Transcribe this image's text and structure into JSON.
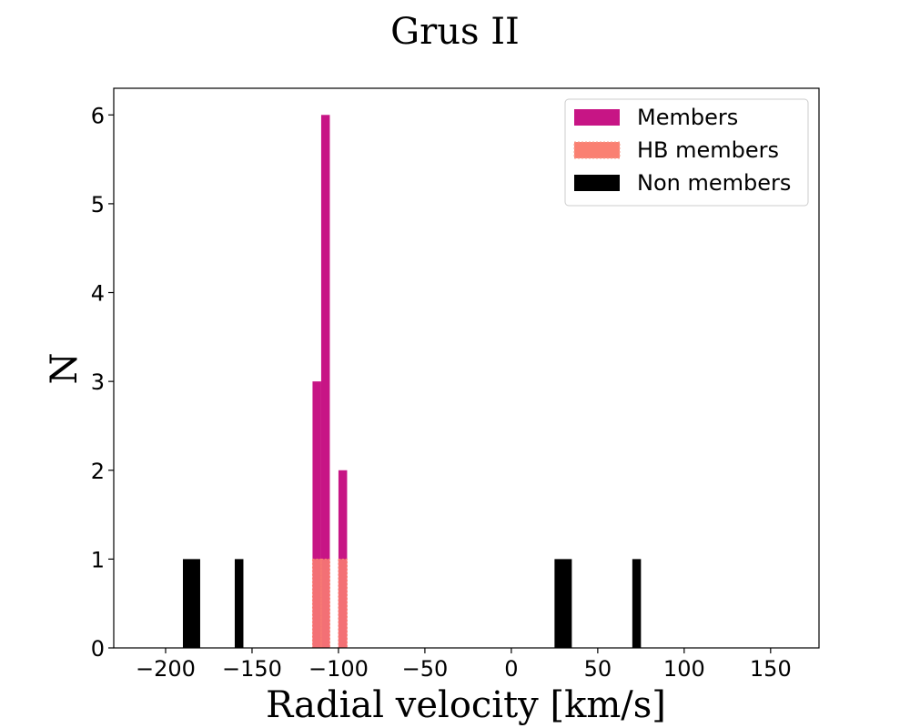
{
  "chart_data": {
    "type": "bar",
    "title": "Grus II",
    "xlabel": "Radial velocity [km/s]",
    "ylabel": "N",
    "xlim": [
      -230,
      178
    ],
    "ylim": [
      0,
      6.3
    ],
    "x_ticks": [
      -200,
      -150,
      -100,
      -50,
      0,
      50,
      100,
      150
    ],
    "y_ticks": [
      0,
      1,
      2,
      3,
      4,
      5,
      6
    ],
    "bin_width": 5,
    "grid": false,
    "legend_position": "top-right",
    "series": [
      {
        "name": "Members",
        "color": "#c71585",
        "bins": [
          {
            "x0": -115,
            "x1": -110,
            "count": 3
          },
          {
            "x0": -110,
            "x1": -105,
            "count": 6
          },
          {
            "x0": -100,
            "x1": -95,
            "count": 2
          }
        ]
      },
      {
        "name": "HB members",
        "color": "#fa8072",
        "bins": [
          {
            "x0": -115,
            "x1": -110,
            "count": 1
          },
          {
            "x0": -110,
            "x1": -105,
            "count": 1
          },
          {
            "x0": -100,
            "x1": -95,
            "count": 1
          }
        ]
      },
      {
        "name": "Non members",
        "color": "#000000",
        "bins": [
          {
            "x0": -190,
            "x1": -180,
            "count": 1
          },
          {
            "x0": -160,
            "x1": -155,
            "count": 1
          },
          {
            "x0": 25,
            "x1": 35,
            "count": 1
          },
          {
            "x0": 70,
            "x1": 75,
            "count": 1
          }
        ]
      }
    ]
  }
}
